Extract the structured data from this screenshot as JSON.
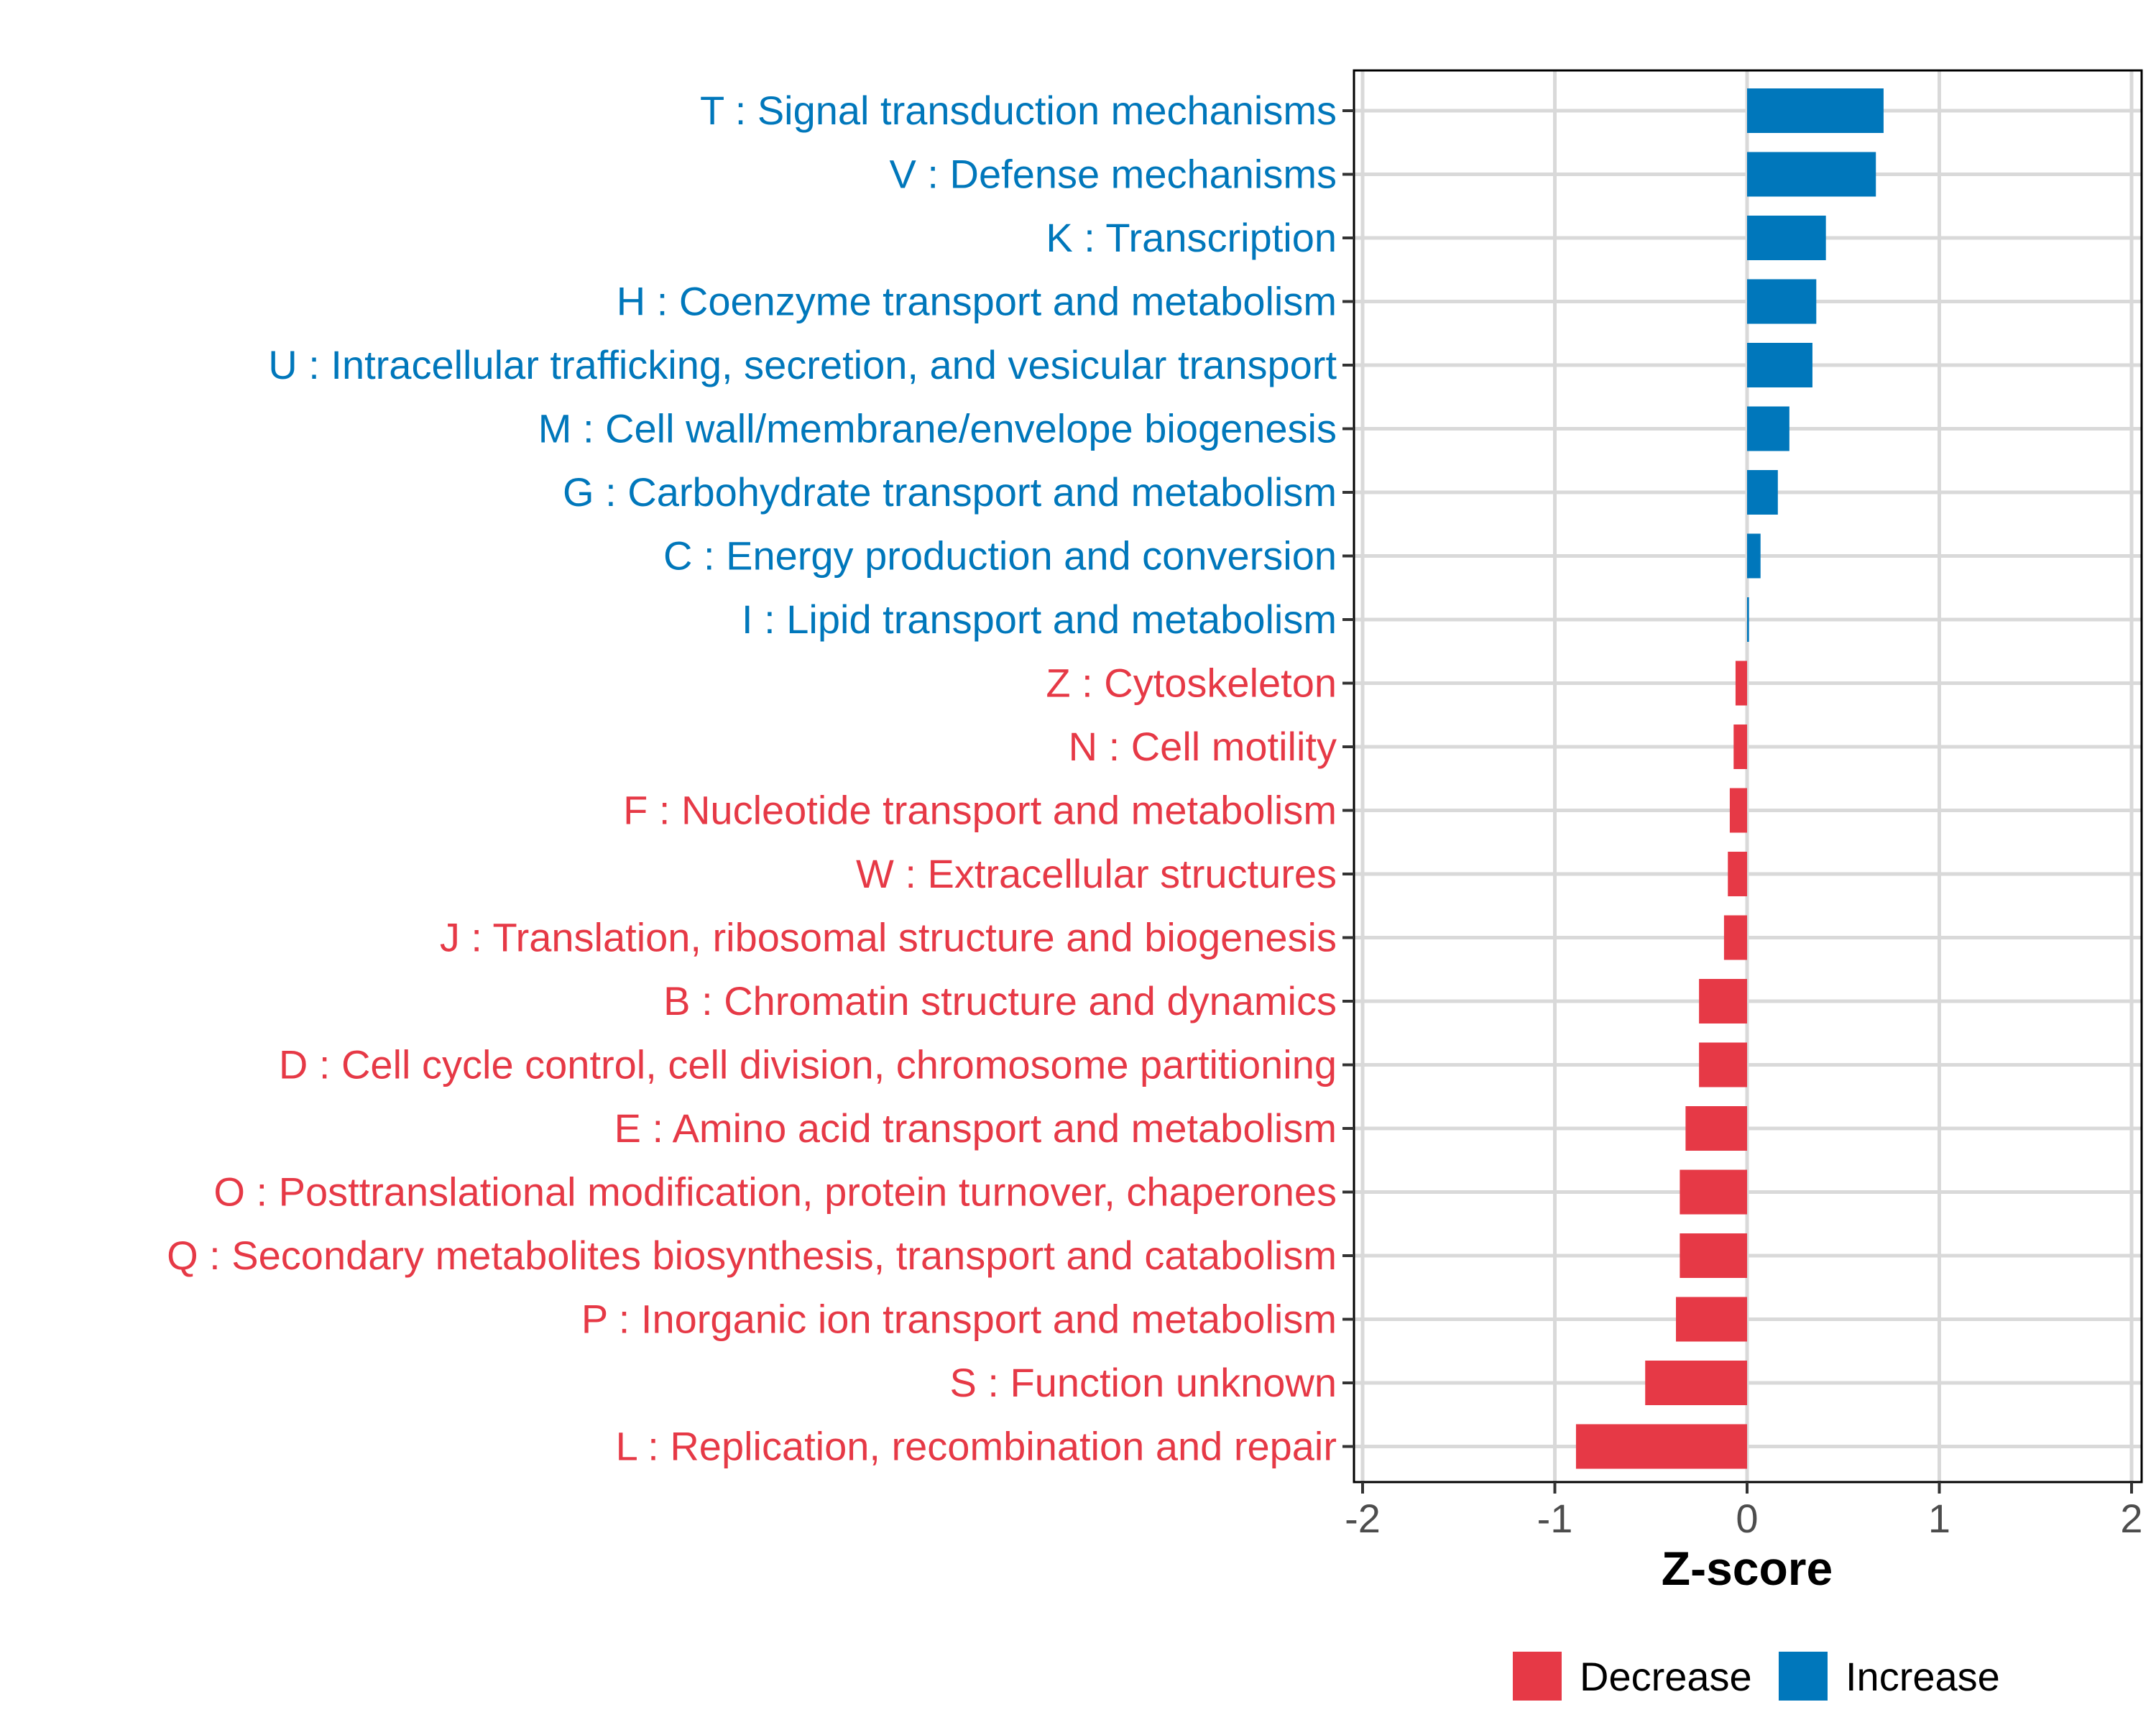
{
  "chart_data": {
    "type": "bar",
    "orientation": "horizontal",
    "title": "",
    "xlabel": "Z-score",
    "ylabel": "",
    "xlim": [
      -2.08,
      2.08
    ],
    "xticks": [
      "-2",
      "-1",
      "0",
      "1",
      "2"
    ],
    "xtick_values": [
      -2,
      -1,
      0,
      1,
      2
    ],
    "grid": true,
    "legend_position": "bottom",
    "colors": {
      "Decrease": "#E63946",
      "Increase": "#0077BB"
    },
    "legend": [
      "Decrease",
      "Increase"
    ],
    "categories": [
      "T : Signal transduction mechanisms",
      "V : Defense mechanisms",
      "K : Transcription",
      "H : Coenzyme transport and metabolism",
      "U : Intracellular trafficking, secretion, and vesicular transport",
      "M : Cell wall/membrane/envelope biogenesis",
      "G : Carbohydrate transport and metabolism",
      "C : Energy production and conversion",
      "I : Lipid transport and metabolism",
      "Z : Cytoskeleton",
      "N : Cell motility",
      "F : Nucleotide transport and metabolism",
      "W : Extracellular structures",
      "J : Translation, ribosomal structure and biogenesis",
      "B : Chromatin structure and dynamics",
      "D : Cell cycle control, cell division, chromosome partitioning",
      "E : Amino acid transport and metabolism",
      "O : Posttranslational modification, protein turnover, chaperones",
      "Q : Secondary metabolites biosynthesis, transport and catabolism",
      "P : Inorganic ion transport and metabolism",
      "S : Function unknown",
      "L : Replication, recombination and repair"
    ],
    "values": [
      0.71,
      0.67,
      0.41,
      0.36,
      0.34,
      0.22,
      0.16,
      0.07,
      0.01,
      -0.06,
      -0.07,
      -0.09,
      -0.1,
      -0.12,
      -0.25,
      -0.25,
      -0.32,
      -0.35,
      -0.35,
      -0.37,
      -0.53,
      -0.89
    ],
    "groups": [
      "Increase",
      "Increase",
      "Increase",
      "Increase",
      "Increase",
      "Increase",
      "Increase",
      "Increase",
      "Increase",
      "Decrease",
      "Decrease",
      "Decrease",
      "Decrease",
      "Decrease",
      "Decrease",
      "Decrease",
      "Decrease",
      "Decrease",
      "Decrease",
      "Decrease",
      "Decrease",
      "Decrease"
    ]
  }
}
